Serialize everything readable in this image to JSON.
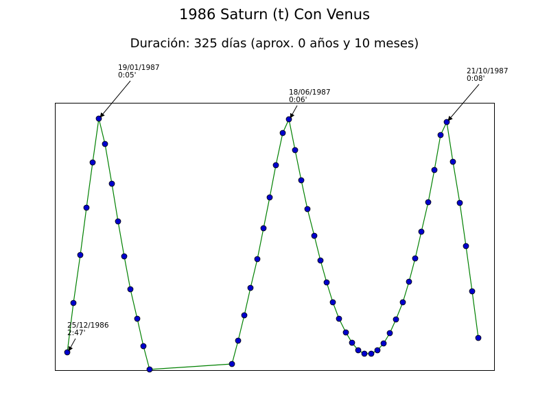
{
  "chart_data": {
    "type": "line",
    "title": "1986 Saturn (t) Con Venus",
    "subtitle": "Duración: 325 días (aprox. 0 años y 10 meses)",
    "x": [
      18,
      27,
      37,
      46,
      55,
      64,
      73,
      83,
      92,
      101,
      110,
      120,
      129,
      138,
      258,
      267,
      276,
      285,
      295,
      304,
      313,
      322,
      332,
      341,
      350,
      359,
      368,
      378,
      387,
      396,
      405,
      414,
      424,
      433,
      442,
      451,
      461,
      470,
      479,
      488,
      497,
      507,
      516,
      525,
      534,
      544,
      553,
      562,
      571,
      580,
      590,
      599,
      608,
      617
    ],
    "series": [
      {
        "name": null,
        "color": "#008000",
        "marker_color": "#0000cc",
        "values": [
          26,
          98,
          168,
          237,
          303,
          367,
          330,
          272,
          217,
          166,
          118,
          75,
          35,
          1,
          9,
          43,
          80,
          120,
          162,
          207,
          252,
          299,
          346,
          366,
          321,
          277,
          235,
          196,
          160,
          128,
          99,
          75,
          55,
          40,
          29,
          24,
          24,
          29,
          39,
          54,
          74,
          99,
          129,
          163,
          202,
          245,
          292,
          343,
          362,
          304,
          244,
          181,
          115,
          47
        ]
      }
    ],
    "xlim": [
      0,
      640
    ],
    "ylim": [
      0,
      390
    ],
    "annotations": [
      {
        "lines": [
          "25/12/1986",
          "2:47'"
        ]
      },
      {
        "lines": [
          "19/01/1987",
          "0:05'"
        ]
      },
      {
        "lines": [
          "18/06/1987",
          "0:06'"
        ]
      },
      {
        "lines": [
          "21/10/1987",
          "0:08'"
        ]
      }
    ]
  }
}
